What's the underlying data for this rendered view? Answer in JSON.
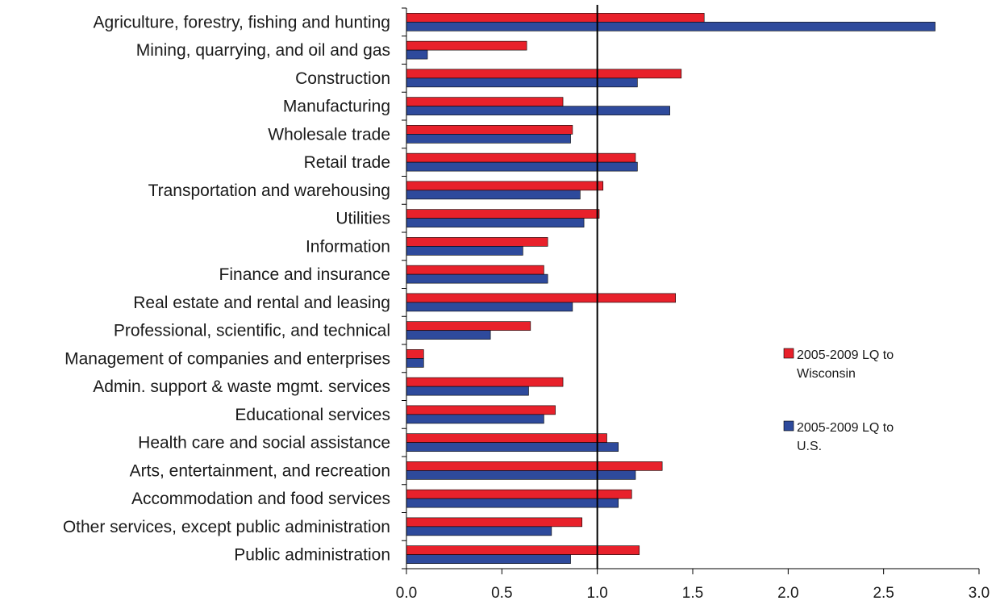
{
  "chart_data": {
    "type": "bar",
    "orientation": "horizontal",
    "title": "",
    "xlabel": "",
    "ylabel": "",
    "xlim": [
      0,
      3.0
    ],
    "x_ticks": [
      "0.0",
      "0.5",
      "1.0",
      "1.5",
      "2.0",
      "2.5",
      "3.0"
    ],
    "reference_line": 1.0,
    "grid": false,
    "legend_position": "right",
    "categories": [
      "Agriculture, forestry, fishing and hunting",
      "Mining, quarrying, and oil and gas",
      "Construction",
      "Manufacturing",
      "Wholesale trade",
      "Retail trade",
      "Transportation and warehousing",
      "Utilities",
      "Information",
      "Finance and insurance",
      "Real estate and rental and leasing",
      "Professional, scientific, and technical",
      "Management of companies and enterprises",
      "Admin. support & waste mgmt. services",
      "Educational services",
      "Health care and social assistance",
      "Arts, entertainment, and recreation",
      "Accommodation and food services",
      "Other services, except public administration",
      "Public administration"
    ],
    "series": [
      {
        "name": "2005-2009 LQ to Wisconsin",
        "legend_lines": [
          "2005-2009 LQ to",
          "Wisconsin"
        ],
        "color": "#e8212b",
        "values": [
          1.56,
          0.63,
          1.44,
          0.82,
          0.87,
          1.2,
          1.03,
          1.01,
          0.74,
          0.72,
          1.41,
          0.65,
          0.09,
          0.82,
          0.78,
          1.05,
          1.34,
          1.18,
          0.92,
          1.22
        ]
      },
      {
        "name": "2005-2009 LQ to U.S.",
        "legend_lines": [
          "2005-2009 LQ to",
          "U.S."
        ],
        "color": "#2e4a9c",
        "values": [
          2.77,
          0.11,
          1.21,
          1.38,
          0.86,
          1.21,
          0.91,
          0.93,
          0.61,
          0.74,
          0.87,
          0.44,
          0.09,
          0.64,
          0.72,
          1.11,
          1.2,
          1.11,
          0.76,
          0.86
        ]
      }
    ]
  }
}
